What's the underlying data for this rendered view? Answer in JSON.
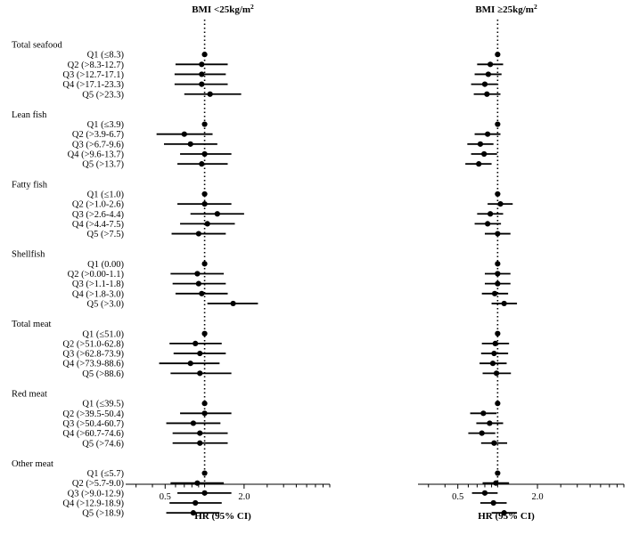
{
  "chart_data": [
    {
      "type": "forest",
      "title": "BMI <25kg/m",
      "title_superscript": "2",
      "xlabel": "HR (95% CI)",
      "x_scale": "log",
      "xlim": [
        0.25,
        9
      ],
      "x_ticks": [
        0.5,
        2.0
      ],
      "x_tick_labels": [
        "0.5",
        "2.0"
      ],
      "reference_line": 1.0,
      "groups": [
        {
          "name": "Total seafood",
          "rows": [
            {
              "label": "Q1 (≤8.3)",
              "hr": 1.0,
              "lo": null,
              "hi": null
            },
            {
              "label": "Q2 (>8.3-12.7)",
              "hr": 0.95,
              "lo": 0.6,
              "hi": 1.5
            },
            {
              "label": "Q3 (>12.7-17.1)",
              "hr": 0.95,
              "lo": 0.59,
              "hi": 1.45
            },
            {
              "label": "Q4 (>17.1-23.3)",
              "hr": 0.95,
              "lo": 0.59,
              "hi": 1.5
            },
            {
              "label": "Q5 (>23.3)",
              "hr": 1.1,
              "lo": 0.7,
              "hi": 1.9
            }
          ]
        },
        {
          "name": "Lean fish",
          "rows": [
            {
              "label": "Q1 (≤3.9)",
              "hr": 1.0,
              "lo": null,
              "hi": null
            },
            {
              "label": "Q2 (>3.9-6.7)",
              "hr": 0.7,
              "lo": 0.43,
              "hi": 1.15
            },
            {
              "label": "Q3 (>6.7-9.6)",
              "hr": 0.78,
              "lo": 0.49,
              "hi": 1.25
            },
            {
              "label": "Q4 (>9.6-13.7)",
              "hr": 1.0,
              "lo": 0.65,
              "hi": 1.6
            },
            {
              "label": "Q5 (>13.7)",
              "hr": 0.95,
              "lo": 0.62,
              "hi": 1.5
            }
          ]
        },
        {
          "name": "Fatty fish",
          "rows": [
            {
              "label": "Q1 (≤1.0)",
              "hr": 1.0,
              "lo": null,
              "hi": null
            },
            {
              "label": "Q2 (>1.0-2.6)",
              "hr": 1.0,
              "lo": 0.62,
              "hi": 1.6
            },
            {
              "label": "Q3 (>2.6-4.4)",
              "hr": 1.25,
              "lo": 0.78,
              "hi": 2.0
            },
            {
              "label": "Q4 (>4.4-7.5)",
              "hr": 1.05,
              "lo": 0.65,
              "hi": 1.7
            },
            {
              "label": "Q5 (>7.5)",
              "hr": 0.9,
              "lo": 0.56,
              "hi": 1.45
            }
          ]
        },
        {
          "name": "Shellfish",
          "rows": [
            {
              "label": "Q1 (0.00)",
              "hr": 1.0,
              "lo": null,
              "hi": null
            },
            {
              "label": "Q2 (>0.00-1.1)",
              "hr": 0.88,
              "lo": 0.55,
              "hi": 1.4
            },
            {
              "label": "Q3 (>1.1-1.8)",
              "hr": 0.9,
              "lo": 0.57,
              "hi": 1.45
            },
            {
              "label": "Q4 (>1.8-3.0)",
              "hr": 0.95,
              "lo": 0.6,
              "hi": 1.5
            },
            {
              "label": "Q5 (>3.0)",
              "hr": 1.65,
              "lo": 1.05,
              "hi": 2.55
            }
          ]
        },
        {
          "name": "Total meat",
          "rows": [
            {
              "label": "Q1 (≤51.0)",
              "hr": 1.0,
              "lo": null,
              "hi": null
            },
            {
              "label": "Q2 (>51.0-62.8)",
              "hr": 0.85,
              "lo": 0.54,
              "hi": 1.35
            },
            {
              "label": "Q3 (>62.8-73.9)",
              "hr": 0.92,
              "lo": 0.58,
              "hi": 1.45
            },
            {
              "label": "Q4 (>73.9-88.6)",
              "hr": 0.78,
              "lo": 0.45,
              "hi": 1.3
            },
            {
              "label": "Q5 (>88.6)",
              "hr": 0.92,
              "lo": 0.55,
              "hi": 1.6
            }
          ]
        },
        {
          "name": "Red meat",
          "rows": [
            {
              "label": "Q1 (≤39.5)",
              "hr": 1.0,
              "lo": null,
              "hi": null
            },
            {
              "label": "Q2 (>39.5-50.4)",
              "hr": 1.0,
              "lo": 0.65,
              "hi": 1.6
            },
            {
              "label": "Q3 (>50.4-60.7)",
              "hr": 0.82,
              "lo": 0.51,
              "hi": 1.32
            },
            {
              "label": "Q4 (>60.7-74.6)",
              "hr": 0.92,
              "lo": 0.57,
              "hi": 1.5
            },
            {
              "label": "Q5 (>74.6)",
              "hr": 0.92,
              "lo": 0.57,
              "hi": 1.5
            }
          ]
        },
        {
          "name": "Other meat",
          "rows": [
            {
              "label": "Q1 (≤5.7)",
              "hr": 1.0,
              "lo": null,
              "hi": null
            },
            {
              "label": "Q2 (>5.7-9.0)",
              "hr": 0.88,
              "lo": 0.55,
              "hi": 1.4
            },
            {
              "label": "Q3 (>9.0-12.9)",
              "hr": 1.0,
              "lo": 0.62,
              "hi": 1.6
            },
            {
              "label": "Q4 (>12.9-18.9)",
              "hr": 0.85,
              "lo": 0.54,
              "hi": 1.35
            },
            {
              "label": "Q5 (>18.9)",
              "hr": 0.82,
              "lo": 0.51,
              "hi": 1.3
            }
          ]
        }
      ]
    },
    {
      "type": "forest",
      "title": "BMI ≥25kg/m",
      "title_superscript": "2",
      "xlabel": "HR (95% CI)",
      "x_scale": "log",
      "xlim": [
        0.25,
        9
      ],
      "x_ticks": [
        0.5,
        2.0
      ],
      "x_tick_labels": [
        "0.5",
        "2.0"
      ],
      "reference_line": 1.0,
      "groups": [
        {
          "name": "Total seafood",
          "rows": [
            {
              "label": "Q1 (≤8.3)",
              "hr": 1.0,
              "lo": null,
              "hi": null
            },
            {
              "label": "Q2 (>8.3-12.7)",
              "hr": 0.88,
              "lo": 0.7,
              "hi": 1.1
            },
            {
              "label": "Q3 (>12.7-17.1)",
              "hr": 0.85,
              "lo": 0.67,
              "hi": 1.07
            },
            {
              "label": "Q4 (>17.1-23.3)",
              "hr": 0.8,
              "lo": 0.63,
              "hi": 1.0
            },
            {
              "label": "Q5 (>23.3)",
              "hr": 0.83,
              "lo": 0.66,
              "hi": 1.05
            }
          ]
        },
        {
          "name": "Lean fish",
          "rows": [
            {
              "label": "Q1 (≤3.9)",
              "hr": 1.0,
              "lo": null,
              "hi": null
            },
            {
              "label": "Q2 (>3.9-6.7)",
              "hr": 0.84,
              "lo": 0.67,
              "hi": 1.05
            },
            {
              "label": "Q3 (>6.7-9.6)",
              "hr": 0.74,
              "lo": 0.59,
              "hi": 0.93
            },
            {
              "label": "Q4 (>9.6-13.7)",
              "hr": 0.79,
              "lo": 0.63,
              "hi": 0.99
            },
            {
              "label": "Q5 (>13.7)",
              "hr": 0.72,
              "lo": 0.57,
              "hi": 0.9
            }
          ]
        },
        {
          "name": "Fatty fish",
          "rows": [
            {
              "label": "Q1 (≤1.0)",
              "hr": 1.0,
              "lo": null,
              "hi": null
            },
            {
              "label": "Q2 (>1.0-2.6)",
              "hr": 1.05,
              "lo": 0.84,
              "hi": 1.3
            },
            {
              "label": "Q3 (>2.6-4.4)",
              "hr": 0.88,
              "lo": 0.7,
              "hi": 1.1
            },
            {
              "label": "Q4 (>4.4-7.5)",
              "hr": 0.84,
              "lo": 0.67,
              "hi": 1.06
            },
            {
              "label": "Q5 (>7.5)",
              "hr": 1.0,
              "lo": 0.8,
              "hi": 1.25
            }
          ]
        },
        {
          "name": "Shellfish",
          "rows": [
            {
              "label": "Q1 (0.00)",
              "hr": 1.0,
              "lo": null,
              "hi": null
            },
            {
              "label": "Q2 (>0.00-1.1)",
              "hr": 1.0,
              "lo": 0.8,
              "hi": 1.25
            },
            {
              "label": "Q3 (>1.1-1.8)",
              "hr": 1.0,
              "lo": 0.8,
              "hi": 1.25
            },
            {
              "label": "Q4 (>1.8-3.0)",
              "hr": 0.95,
              "lo": 0.76,
              "hi": 1.2
            },
            {
              "label": "Q5 (>3.0)",
              "hr": 1.12,
              "lo": 0.9,
              "hi": 1.4
            }
          ]
        },
        {
          "name": "Total meat",
          "rows": [
            {
              "label": "Q1 (≤51.0)",
              "hr": 1.0,
              "lo": null,
              "hi": null
            },
            {
              "label": "Q2 (>51.0-62.8)",
              "hr": 0.96,
              "lo": 0.76,
              "hi": 1.22
            },
            {
              "label": "Q3 (>62.8-73.9)",
              "hr": 0.94,
              "lo": 0.75,
              "hi": 1.2
            },
            {
              "label": "Q4 (>73.9-88.6)",
              "hr": 0.92,
              "lo": 0.73,
              "hi": 1.17
            },
            {
              "label": "Q5 (>88.6)",
              "hr": 0.98,
              "lo": 0.77,
              "hi": 1.26
            }
          ]
        },
        {
          "name": "Red meat",
          "rows": [
            {
              "label": "Q1 (≤39.5)",
              "hr": 1.0,
              "lo": null,
              "hi": null
            },
            {
              "label": "Q2 (>39.5-50.4)",
              "hr": 0.78,
              "lo": 0.62,
              "hi": 0.98
            },
            {
              "label": "Q3 (>50.4-60.7)",
              "hr": 0.87,
              "lo": 0.69,
              "hi": 1.1
            },
            {
              "label": "Q4 (>60.7-74.6)",
              "hr": 0.76,
              "lo": 0.6,
              "hi": 0.96
            },
            {
              "label": "Q5 (>74.6)",
              "hr": 0.94,
              "lo": 0.75,
              "hi": 1.18
            }
          ]
        },
        {
          "name": "Other meat",
          "rows": [
            {
              "label": "Q1 (≤5.7)",
              "hr": 1.0,
              "lo": null,
              "hi": null
            },
            {
              "label": "Q2 (>5.7-9.0)",
              "hr": 0.97,
              "lo": 0.77,
              "hi": 1.22
            },
            {
              "label": "Q3 (>9.0-12.9)",
              "hr": 0.8,
              "lo": 0.64,
              "hi": 1.0
            },
            {
              "label": "Q4 (>12.9-18.9)",
              "hr": 0.93,
              "lo": 0.74,
              "hi": 1.17
            },
            {
              "label": "Q5 (>18.9)",
              "hr": 1.12,
              "lo": 0.9,
              "hi": 1.4
            }
          ]
        }
      ]
    }
  ]
}
